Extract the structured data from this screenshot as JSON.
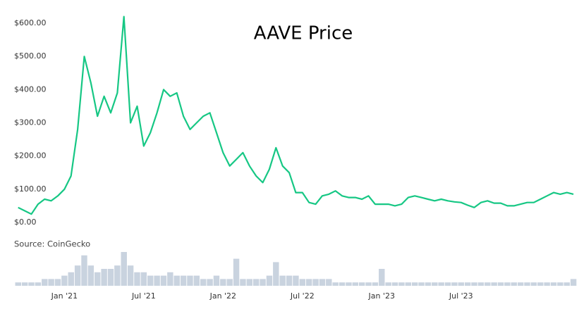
{
  "chart_data": [
    {
      "type": "line",
      "title": "AAVE Price",
      "source": "Source: CoinGecko",
      "color": "#16c784",
      "x": [
        -3.5,
        -3,
        -2.5,
        -2,
        -1.5,
        -1,
        -0.5,
        0,
        0.5,
        1,
        1.5,
        2,
        2.5,
        3,
        3.5,
        4,
        4.5,
        5,
        5.5,
        6,
        6.5,
        7,
        7.5,
        8,
        8.5,
        9,
        9.5,
        10,
        10.5,
        11,
        11.5,
        12,
        12.5,
        13,
        13.5,
        14,
        14.5,
        15,
        15.5,
        16,
        16.5,
        17,
        17.5,
        18,
        18.5,
        19,
        19.5,
        20,
        20.5,
        21,
        21.5,
        22,
        22.5,
        23,
        23.5,
        24,
        24.5,
        25,
        25.5,
        26,
        26.5,
        27,
        27.5,
        28,
        28.5,
        29,
        29.5,
        30,
        30.5,
        31,
        31.5,
        32,
        32.5,
        33,
        33.5,
        34,
        34.5,
        35,
        35.5,
        36,
        36.5,
        37,
        37.5,
        38,
        38.5
      ],
      "values": [
        45,
        35,
        25,
        55,
        70,
        65,
        80,
        100,
        140,
        280,
        500,
        420,
        320,
        380,
        330,
        390,
        620,
        300,
        350,
        230,
        270,
        330,
        400,
        380,
        390,
        320,
        280,
        300,
        320,
        330,
        270,
        210,
        170,
        190,
        210,
        170,
        140,
        120,
        160,
        225,
        170,
        150,
        90,
        90,
        60,
        55,
        80,
        85,
        95,
        80,
        75,
        75,
        70,
        80,
        55,
        55,
        55,
        50,
        55,
        75,
        80,
        75,
        70,
        65,
        70,
        65,
        62,
        60,
        52,
        45,
        60,
        65,
        58,
        58,
        50,
        50,
        55,
        60,
        60,
        70,
        80,
        90,
        85,
        90,
        85
      ],
      "xlim": [
        -3.7,
        38.6
      ],
      "ylim": [
        0,
        600
      ],
      "xticks": [
        {
          "value": 0,
          "label": "Jan '21"
        },
        {
          "value": 6,
          "label": "Jul '21"
        },
        {
          "value": 12,
          "label": "Jan '22"
        },
        {
          "value": 18,
          "label": "Jul '22"
        },
        {
          "value": 24,
          "label": "Jan '23"
        },
        {
          "value": 30,
          "label": "Jul '23"
        }
      ],
      "yticks": [
        {
          "value": 0,
          "label": "$0.00"
        },
        {
          "value": 100,
          "label": "$100.00"
        },
        {
          "value": 200,
          "label": "$200.00"
        },
        {
          "value": 300,
          "label": "$300.00"
        },
        {
          "value": 400,
          "label": "$400.00"
        },
        {
          "value": 500,
          "label": "$500.00"
        },
        {
          "value": 600,
          "label": "$600.00"
        }
      ]
    },
    {
      "type": "bar",
      "color": "#c9d3df",
      "x": [
        -3.5,
        -3,
        -2.5,
        -2,
        -1.5,
        -1,
        -0.5,
        0,
        0.5,
        1,
        1.5,
        2,
        2.5,
        3,
        3.5,
        4,
        4.5,
        5,
        5.5,
        6,
        6.5,
        7,
        7.5,
        8,
        8.5,
        9,
        9.5,
        10,
        10.5,
        11,
        11.5,
        12,
        12.5,
        13,
        13.5,
        14,
        14.5,
        15,
        15.5,
        16,
        16.5,
        17,
        17.5,
        18,
        18.5,
        19,
        19.5,
        20,
        20.5,
        21,
        21.5,
        22,
        22.5,
        23,
        23.5,
        24,
        24.5,
        25,
        25.5,
        26,
        26.5,
        27,
        27.5,
        28,
        28.5,
        29,
        29.5,
        30,
        30.5,
        31,
        31.5,
        32,
        32.5,
        33,
        33.5,
        34,
        34.5,
        35,
        35.5,
        36,
        36.5,
        37,
        37.5,
        38,
        38.5
      ],
      "values": [
        1,
        1,
        1,
        1,
        2,
        2,
        2,
        3,
        4,
        6,
        9,
        6,
        4,
        5,
        5,
        6,
        10,
        6,
        4,
        4,
        3,
        3,
        3,
        4,
        3,
        3,
        3,
        3,
        2,
        2,
        3,
        2,
        2,
        8,
        2,
        2,
        2,
        2,
        3,
        7,
        3,
        3,
        3,
        2,
        2,
        2,
        2,
        2,
        1,
        1,
        1,
        1,
        1,
        1,
        1,
        5,
        1,
        1,
        1,
        1,
        1,
        1,
        1,
        1,
        1,
        1,
        1,
        1,
        1,
        1,
        1,
        1,
        1,
        1,
        1,
        1,
        1,
        1,
        1,
        1,
        1,
        1,
        1,
        1,
        2
      ],
      "xlim": [
        -3.7,
        38.6
      ],
      "ylim": [
        0,
        10
      ]
    }
  ]
}
